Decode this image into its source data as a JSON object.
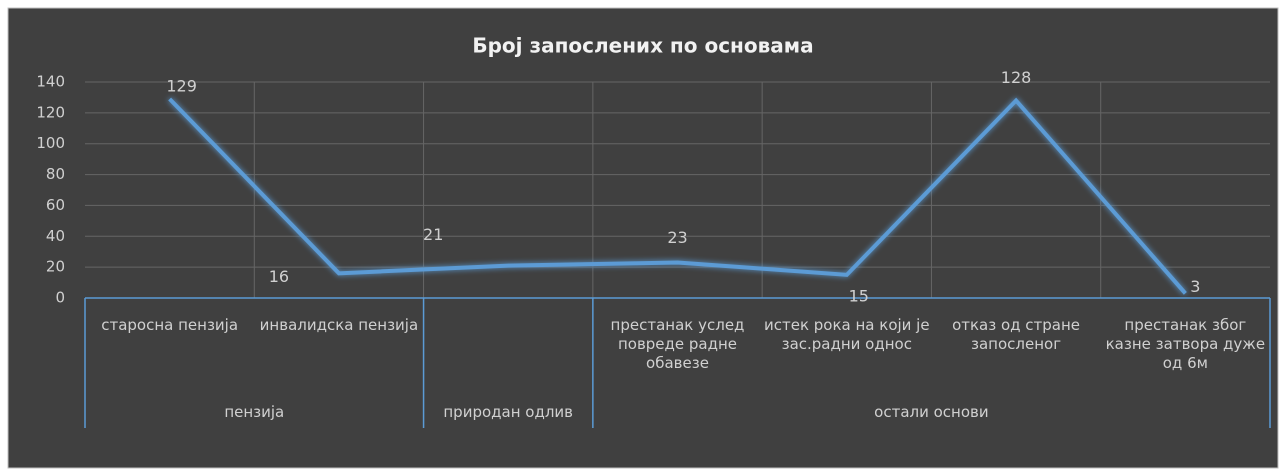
{
  "chart_data": {
    "type": "line",
    "title": "Број запослених по основама",
    "categories": [
      "старосна пензија",
      "инвалидска пензија",
      null,
      "престанак услед повреде радне обавезе",
      "истек рока на који је зас.радни однос",
      "отказ од стране запосленог",
      "престанак због казне затвора дуже од 6м"
    ],
    "groups": [
      {
        "name": "пензија",
        "span": 2
      },
      {
        "name": "природан одлив",
        "span": 1
      },
      {
        "name": "остали основи",
        "span": 4
      }
    ],
    "series": [
      {
        "name": null,
        "color": "#5b9bd5",
        "values": [
          129,
          16,
          21,
          23,
          15,
          128,
          3
        ]
      }
    ],
    "ylim": [
      0,
      140
    ],
    "yticks": [
      0,
      20,
      40,
      60,
      80,
      100,
      120,
      140
    ],
    "grid": true
  }
}
